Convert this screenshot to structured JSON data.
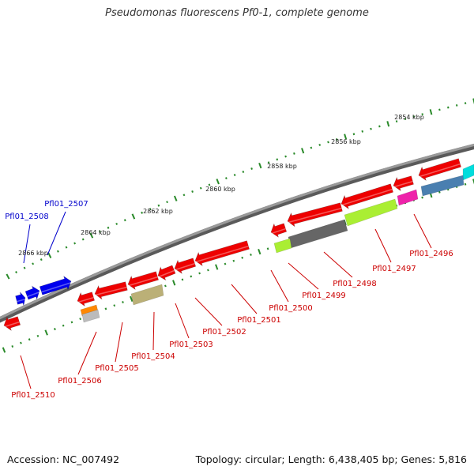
{
  "title": "Pseudomonas fluorescens Pf0-1, complete genome",
  "footer": {
    "accession": "Accession: NC_007492",
    "summary": "Topology: circular; Length: 6,438,405 bp; Genes: 5,816"
  },
  "colors": {
    "backbone": "#777777",
    "tick_green": "#2a8a2a",
    "forward_blue": "#0000ee",
    "reverse_red": "#ee0000"
  },
  "ticks": [
    {
      "label": "2854 kbp"
    },
    {
      "label": "2856 kbp"
    },
    {
      "label": "2858 kbp"
    },
    {
      "label": "2860 kbp"
    },
    {
      "label": "2862 kbp"
    },
    {
      "label": "2864 kbp"
    },
    {
      "label": "2866 kbp"
    }
  ],
  "genes": [
    {
      "id": "g2496",
      "label": "Pfl01_2496",
      "strand": "reverse",
      "color": "#ee0000",
      "label_color": "#cc0000"
    },
    {
      "id": "g2497",
      "label": "Pfl01_2497",
      "strand": "reverse",
      "color": "#ee0000",
      "label_color": "#cc0000"
    },
    {
      "id": "g2498",
      "label": "Pfl01_2498",
      "strand": "reverse",
      "color": "#ee0000",
      "label_color": "#cc0000"
    },
    {
      "id": "g2499",
      "label": "Pfl01_2499",
      "strand": "reverse",
      "color": "#ee0000",
      "label_color": "#cc0000"
    },
    {
      "id": "g2500",
      "label": "Pfl01_2500",
      "strand": "reverse",
      "color": "#ee0000",
      "label_color": "#cc0000"
    },
    {
      "id": "g2501",
      "label": "Pfl01_2501",
      "strand": "reverse",
      "color": "#ee0000",
      "label_color": "#cc0000"
    },
    {
      "id": "g2502",
      "label": "Pfl01_2502",
      "strand": "reverse",
      "color": "#ee0000",
      "label_color": "#cc0000"
    },
    {
      "id": "g2503",
      "label": "Pfl01_2503",
      "strand": "reverse",
      "color": "#ee0000",
      "label_color": "#cc0000"
    },
    {
      "id": "g2504",
      "label": "Pfl01_2504",
      "strand": "reverse",
      "color": "#ee0000",
      "label_color": "#cc0000"
    },
    {
      "id": "g2505",
      "label": "Pfl01_2505",
      "strand": "reverse",
      "color": "#ee0000",
      "label_color": "#cc0000"
    },
    {
      "id": "g2506",
      "label": "Pfl01_2506",
      "strand": "reverse",
      "color": "#ee0000",
      "label_color": "#cc0000"
    },
    {
      "id": "g2507",
      "label": "Pfl01_2507",
      "strand": "forward",
      "color": "#0000ee",
      "label_color": "#0000cc"
    },
    {
      "id": "g2508",
      "label": "Pfl01_2508",
      "strand": "forward",
      "color": "#0000ee",
      "label_color": "#0000cc"
    },
    {
      "id": "g2510",
      "label": "Pfl01_2510",
      "strand": "reverse",
      "color": "#ee0000",
      "label_color": "#cc0000"
    }
  ],
  "features": [
    {
      "name": "cyan",
      "color": "#00dddd"
    },
    {
      "name": "steel-blue",
      "color": "#4a7fb0"
    },
    {
      "name": "magenta",
      "color": "#ee22aa"
    },
    {
      "name": "yellow-green",
      "color": "#aaee33"
    },
    {
      "name": "dark-gray",
      "color": "#666666"
    },
    {
      "name": "khaki",
      "color": "#bbb077"
    },
    {
      "name": "orange",
      "color": "#ff8800"
    },
    {
      "name": "light-gray",
      "color": "#bbbbbb"
    }
  ]
}
